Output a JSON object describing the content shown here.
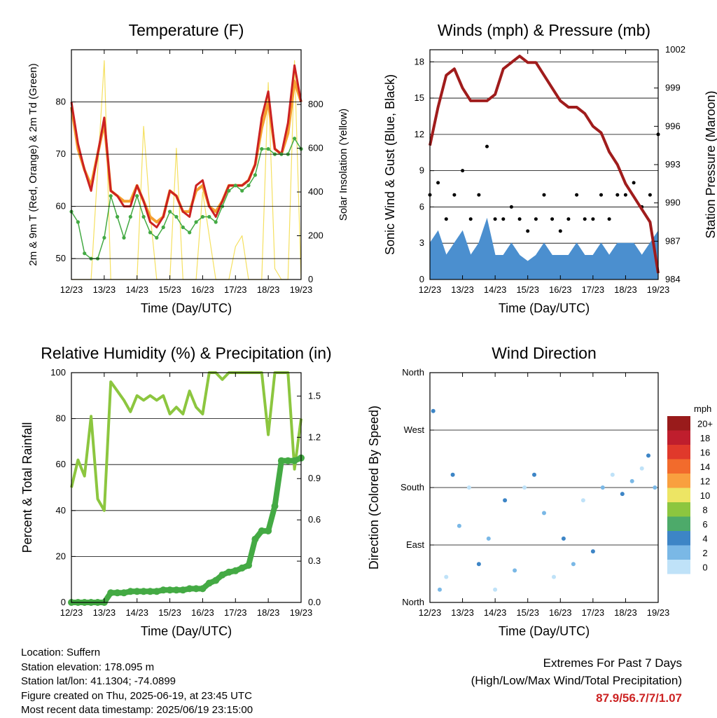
{
  "chart_data": [
    {
      "type": "line",
      "title": "Temperature (F)",
      "xlabel": "Time (Day/UTC)",
      "ylabel": "2m & 9m T (Red, Orange) & 2m Td (Green)",
      "y2label": "Solar Insolation (Yellow)",
      "xtick_labels": [
        "12/23",
        "13/23",
        "14/23",
        "15/23",
        "16/23",
        "17/23",
        "18/23",
        "19/23"
      ],
      "ylim": [
        46,
        90
      ],
      "yticks": [
        50,
        60,
        70,
        80
      ],
      "y2lim": [
        0,
        1050
      ],
      "y2ticks": [
        0,
        200,
        400,
        600,
        800
      ],
      "colors": {
        "t2m": "#cc2222",
        "t9m": "#f5a030",
        "td": "#44aa44",
        "solar": "#f5e060"
      },
      "x": [
        0,
        0.2,
        0.4,
        0.6,
        0.8,
        1.0,
        1.2,
        1.4,
        1.6,
        1.8,
        2.0,
        2.2,
        2.4,
        2.6,
        2.8,
        3.0,
        3.2,
        3.4,
        3.6,
        3.8,
        4.0,
        4.2,
        4.4,
        4.6,
        4.8,
        5.0,
        5.2,
        5.4,
        5.6,
        5.8,
        6.0,
        6.2,
        6.4,
        6.6,
        6.8,
        7.0
      ],
      "series": [
        {
          "name": "2m T",
          "values": [
            80,
            72,
            67,
            63,
            70,
            77,
            63,
            62,
            60,
            60,
            64,
            61,
            57,
            56,
            58,
            63,
            62,
            59,
            58,
            64,
            65,
            60,
            58,
            61,
            64,
            64,
            64,
            65,
            68,
            77,
            82,
            71,
            70,
            76,
            87,
            80
          ]
        },
        {
          "name": "9m T",
          "values": [
            79,
            71,
            67,
            64,
            70,
            76,
            63,
            62,
            61,
            61,
            64,
            61,
            58,
            57,
            58,
            63,
            62,
            59,
            59,
            63,
            64,
            60,
            59,
            61,
            64,
            64,
            64,
            65,
            68,
            75,
            80,
            71,
            70,
            74,
            84,
            80
          ]
        },
        {
          "name": "2m Td",
          "values": [
            59,
            57,
            51,
            50,
            50,
            54,
            62,
            58,
            54,
            58,
            62,
            58,
            55,
            54,
            56,
            59,
            58,
            56,
            55,
            57,
            58,
            58,
            57,
            60,
            63,
            64,
            63,
            64,
            66,
            71,
            71,
            70,
            70,
            70,
            73,
            71
          ]
        },
        {
          "name": "Solar",
          "values": [
            0,
            0,
            0,
            0,
            500,
            1000,
            0,
            0,
            0,
            0,
            0,
            700,
            300,
            0,
            0,
            0,
            600,
            0,
            0,
            0,
            400,
            200,
            0,
            0,
            0,
            150,
            200,
            0,
            0,
            0,
            900,
            50,
            0,
            0,
            1000,
            0
          ]
        }
      ]
    },
    {
      "type": "scatter",
      "title": "Winds (mph) & Pressure (mb)",
      "xlabel": "Time (Day/UTC)",
      "ylabel": "Sonic Wind & Gust (Blue, Black)",
      "y2label": "Station Pressure (Maroon)",
      "xtick_labels": [
        "12/23",
        "13/23",
        "14/23",
        "15/23",
        "16/23",
        "17/23",
        "18/23",
        "19/23"
      ],
      "ylim": [
        0,
        19
      ],
      "yticks": [
        0,
        3,
        6,
        9,
        12,
        15,
        18
      ],
      "y2lim": [
        984,
        1002
      ],
      "y2ticks": [
        984,
        987,
        990,
        993,
        996,
        999,
        1002
      ],
      "colors": {
        "wind": "#4b8fcf",
        "gust": "#000000",
        "pressure": "#a01c1c"
      },
      "x": [
        0,
        0.25,
        0.5,
        0.75,
        1.0,
        1.25,
        1.5,
        1.75,
        2.0,
        2.25,
        2.5,
        2.75,
        3.0,
        3.25,
        3.5,
        3.75,
        4.0,
        4.25,
        4.5,
        4.75,
        5.0,
        5.25,
        5.5,
        5.75,
        6.0,
        6.25,
        6.5,
        6.75,
        7.0
      ],
      "series": [
        {
          "name": "Wind",
          "values": [
            3,
            4,
            2,
            3,
            4,
            2,
            3,
            5,
            2,
            2,
            3,
            2,
            1.5,
            2,
            3,
            2,
            2,
            2,
            3,
            2,
            2,
            3,
            2,
            3,
            3,
            3,
            2,
            3,
            4
          ]
        },
        {
          "name": "Gust",
          "values": [
            7,
            8,
            5,
            7,
            9,
            5,
            7,
            11,
            5,
            5,
            6,
            5,
            4,
            5,
            7,
            5,
            4,
            5,
            7,
            5,
            5,
            7,
            5,
            7,
            7,
            8,
            6,
            7,
            12
          ]
        },
        {
          "name": "Pressure",
          "values": [
            994.5,
            997.5,
            1000,
            1000.5,
            999,
            998,
            998,
            998,
            998.5,
            1000.5,
            1001,
            1001.5,
            1001,
            1001,
            1000,
            999,
            998,
            997.5,
            997.5,
            997,
            996,
            995.5,
            994,
            993,
            991.5,
            990.5,
            989.5,
            988.5,
            984.5
          ]
        }
      ]
    },
    {
      "type": "line",
      "title": "Relative Humidity (%) & Precipitation (in)",
      "xlabel": "Time (Day/UTC)",
      "ylabel": "Percent & Total Rainfall",
      "xtick_labels": [
        "12/23",
        "13/23",
        "14/23",
        "15/23",
        "16/23",
        "17/23",
        "18/23",
        "19/23"
      ],
      "ylim": [
        0,
        100
      ],
      "yticks": [
        0,
        20,
        40,
        60,
        80,
        100
      ],
      "y2lim": [
        0,
        1.67
      ],
      "y2ticks": [
        0.0,
        0.3,
        0.6,
        0.9,
        1.2,
        1.5
      ],
      "y2tick_labels": [
        "0.0",
        "0.3",
        "0.6",
        "0.9",
        "1.2",
        "1.5"
      ],
      "colors": {
        "rh": "#8cc63f",
        "rain": "#44aa44"
      },
      "x": [
        0,
        0.2,
        0.4,
        0.6,
        0.8,
        1.0,
        1.2,
        1.4,
        1.6,
        1.8,
        2.0,
        2.2,
        2.4,
        2.6,
        2.8,
        3.0,
        3.2,
        3.4,
        3.6,
        3.8,
        4.0,
        4.2,
        4.4,
        4.6,
        4.8,
        5.0,
        5.2,
        5.4,
        5.6,
        5.8,
        6.0,
        6.2,
        6.4,
        6.6,
        6.8,
        7.0
      ],
      "series": [
        {
          "name": "RH",
          "values": [
            50,
            62,
            55,
            81,
            45,
            40,
            96,
            92,
            88,
            83,
            90,
            88,
            90,
            88,
            90,
            82,
            85,
            82,
            92,
            85,
            82,
            100,
            100,
            97,
            100,
            100,
            100,
            100,
            100,
            100,
            73,
            100,
            100,
            100,
            58,
            80
          ]
        },
        {
          "name": "Rain",
          "values": [
            0,
            0,
            0,
            0,
            0,
            0,
            0.07,
            0.07,
            0.07,
            0.08,
            0.08,
            0.08,
            0.08,
            0.08,
            0.09,
            0.09,
            0.09,
            0.09,
            0.1,
            0.1,
            0.1,
            0.14,
            0.16,
            0.2,
            0.22,
            0.23,
            0.25,
            0.27,
            0.46,
            0.52,
            0.52,
            0.7,
            1.03,
            1.03,
            1.03,
            1.05
          ]
        }
      ]
    },
    {
      "type": "scatter",
      "title": "Wind Direction",
      "xlabel": "Time (Day/UTC)",
      "ylabel": "Direction (Colored By Speed)",
      "xtick_labels": [
        "12/23",
        "13/23",
        "14/23",
        "15/23",
        "16/23",
        "17/23",
        "18/23",
        "19/23"
      ],
      "ylim": [
        0,
        360
      ],
      "yticks": [
        0,
        90,
        180,
        270,
        360
      ],
      "ytick_labels": [
        "North",
        "East",
        "South",
        "West",
        "North"
      ],
      "colorbar_title": "mph",
      "colorbar_labels": [
        "20+",
        "18",
        "16",
        "14",
        "12",
        "10",
        "8",
        "6",
        "4",
        "2",
        "0"
      ],
      "colorbar_colors": [
        "#991b1b",
        "#bf1e2d",
        "#e0392b",
        "#f26b2c",
        "#f9a03f",
        "#ede564",
        "#8cc63f",
        "#4daa6a",
        "#3d85c6",
        "#7ab8e6",
        "#bfe2f8"
      ],
      "x": [
        0.1,
        0.3,
        0.5,
        0.7,
        0.9,
        1.2,
        1.5,
        1.8,
        2.0,
        2.3,
        2.6,
        2.9,
        3.2,
        3.5,
        3.8,
        4.1,
        4.4,
        4.7,
        5.0,
        5.3,
        5.6,
        5.9,
        6.2,
        6.5,
        6.7,
        6.9
      ],
      "series": [
        {
          "name": "Direction",
          "values": [
            300,
            20,
            40,
            200,
            120,
            180,
            60,
            100,
            20,
            160,
            50,
            180,
            200,
            140,
            40,
            100,
            60,
            160,
            80,
            180,
            200,
            170,
            190,
            210,
            230,
            180
          ]
        }
      ]
    }
  ],
  "info": {
    "location": "Location: Suffern",
    "elevation": "Station elevation: 178.095 m",
    "latlon": "Station lat/lon: 41.1304; -74.0899",
    "created": "Figure created on Thu, 2025-06-19, at 23:45 UTC",
    "recent": "Most recent data timestamp: 2025/06/19 23:15:00"
  },
  "extremes": {
    "heading": "Extremes For Past 7 Days",
    "subheading": "(High/Low/Max Wind/Total Precipitation)",
    "values": "87.9/56.7/7/1.07"
  }
}
